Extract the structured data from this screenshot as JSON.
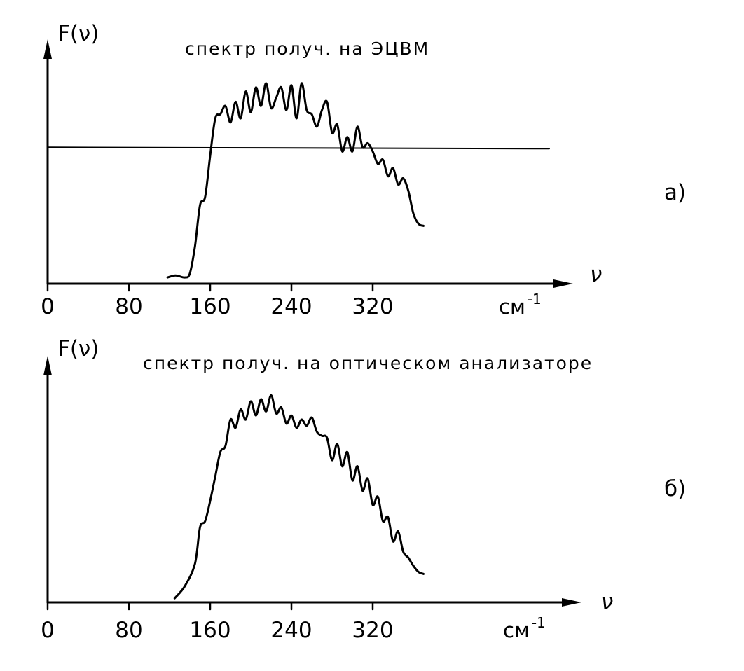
{
  "chart_data": [
    {
      "type": "line",
      "panel_label": "а)",
      "title": "спектр получ. на ЭЦВМ",
      "ylabel": "F(ν)",
      "xlabel": "ν",
      "x_unit": "см",
      "x_unit_exponent": "-1",
      "xlim": [
        0,
        390
      ],
      "ylim": [
        0,
        1
      ],
      "x_ticks": [
        0,
        80,
        160,
        240,
        320
      ],
      "x_tick_labels": [
        "0",
        "80",
        "160",
        "240",
        "320"
      ],
      "grid": false,
      "legend": "none",
      "reference_line": {
        "y": 0.66
      },
      "series": [
        {
          "x": [
            118,
            126,
            135,
            140,
            145,
            150,
            155,
            160,
            165,
            170,
            175,
            180,
            185,
            190,
            195,
            200,
            205,
            210,
            215,
            220,
            225,
            230,
            235,
            240,
            245,
            250,
            255,
            260,
            265,
            270,
            275,
            280,
            285,
            290,
            295,
            300,
            305,
            310,
            315,
            320,
            325,
            330,
            335,
            340,
            345,
            350,
            355,
            360,
            365,
            370
          ],
          "y": [
            0.03,
            0.04,
            0.03,
            0.05,
            0.18,
            0.38,
            0.42,
            0.62,
            0.8,
            0.82,
            0.86,
            0.78,
            0.88,
            0.8,
            0.93,
            0.83,
            0.95,
            0.86,
            0.97,
            0.85,
            0.9,
            0.95,
            0.84,
            0.96,
            0.8,
            0.97,
            0.84,
            0.82,
            0.76,
            0.84,
            0.88,
            0.73,
            0.77,
            0.64,
            0.71,
            0.64,
            0.76,
            0.66,
            0.68,
            0.64,
            0.58,
            0.6,
            0.52,
            0.56,
            0.48,
            0.51,
            0.45,
            0.34,
            0.29,
            0.28
          ]
        }
      ]
    },
    {
      "type": "line",
      "panel_label": "б)",
      "title": "спектр получ. на оптическом анализаторе",
      "ylabel": "F(ν)",
      "xlabel": "ν",
      "x_unit": "см",
      "x_unit_exponent": "-1",
      "xlim": [
        0,
        390
      ],
      "ylim": [
        0,
        1
      ],
      "x_ticks": [
        0,
        80,
        160,
        240,
        320
      ],
      "x_tick_labels": [
        "0",
        "80",
        "160",
        "240",
        "320"
      ],
      "grid": false,
      "legend": "none",
      "series": [
        {
          "x": [
            125,
            135,
            145,
            150,
            155,
            160,
            165,
            170,
            175,
            180,
            185,
            190,
            195,
            200,
            205,
            210,
            215,
            220,
            225,
            230,
            235,
            240,
            245,
            250,
            255,
            260,
            265,
            270,
            275,
            280,
            285,
            290,
            295,
            300,
            305,
            310,
            315,
            320,
            325,
            330,
            335,
            340,
            345,
            350,
            355,
            360,
            365,
            370
          ],
          "y": [
            0.02,
            0.08,
            0.19,
            0.37,
            0.4,
            0.5,
            0.62,
            0.74,
            0.77,
            0.9,
            0.86,
            0.95,
            0.9,
            0.99,
            0.92,
            1.0,
            0.94,
            1.02,
            0.93,
            0.96,
            0.88,
            0.92,
            0.86,
            0.9,
            0.87,
            0.91,
            0.84,
            0.82,
            0.81,
            0.7,
            0.78,
            0.67,
            0.74,
            0.6,
            0.67,
            0.55,
            0.61,
            0.48,
            0.52,
            0.4,
            0.42,
            0.3,
            0.35,
            0.25,
            0.22,
            0.18,
            0.15,
            0.14
          ]
        }
      ]
    }
  ]
}
